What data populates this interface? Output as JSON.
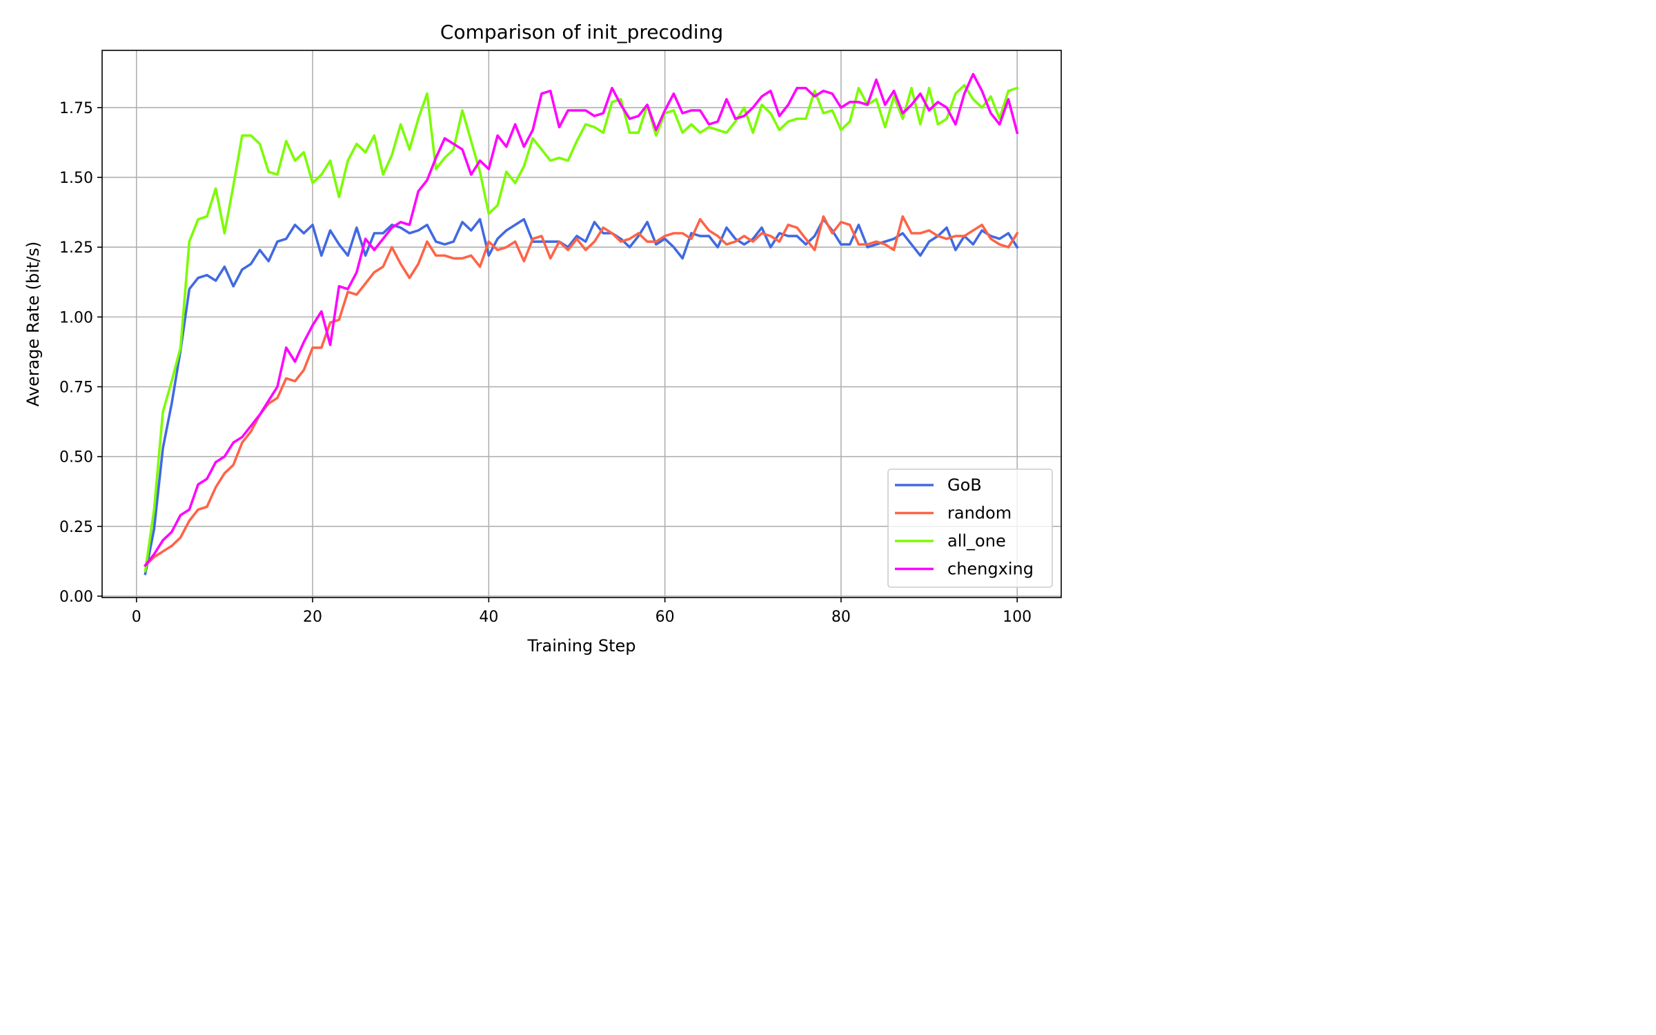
{
  "chart_data": {
    "type": "line",
    "title": "Comparison of init_precoding",
    "xlabel": "Training Step",
    "ylabel": "Average Rate (bit/s)",
    "xlim": [
      -3.9,
      105.0
    ],
    "ylim": [
      -0.005,
      1.955
    ],
    "xticks": [
      0,
      20,
      40,
      60,
      80,
      100
    ],
    "xtick_labels": [
      "0",
      "20",
      "40",
      "60",
      "80",
      "100"
    ],
    "yticks": [
      0.0,
      0.25,
      0.5,
      0.75,
      1.0,
      1.25,
      1.5,
      1.75
    ],
    "ytick_labels": [
      "0.00",
      "0.25",
      "0.50",
      "0.75",
      "1.00",
      "1.25",
      "1.50",
      "1.75"
    ],
    "grid": true,
    "legend_position": "lower right",
    "x_start": 1,
    "series": [
      {
        "name": "GoB",
        "color": "#4169e1",
        "values": [
          0.08,
          0.24,
          0.53,
          0.69,
          0.88,
          1.1,
          1.14,
          1.15,
          1.13,
          1.18,
          1.11,
          1.17,
          1.19,
          1.24,
          1.2,
          1.27,
          1.28,
          1.33,
          1.3,
          1.33,
          1.22,
          1.31,
          1.26,
          1.22,
          1.32,
          1.22,
          1.3,
          1.3,
          1.33,
          1.32,
          1.3,
          1.31,
          1.33,
          1.27,
          1.26,
          1.27,
          1.34,
          1.31,
          1.35,
          1.22,
          1.28,
          1.31,
          1.33,
          1.35,
          1.27,
          1.27,
          1.27,
          1.27,
          1.25,
          1.29,
          1.27,
          1.34,
          1.3,
          1.3,
          1.28,
          1.25,
          1.29,
          1.34,
          1.26,
          1.28,
          1.25,
          1.21,
          1.3,
          1.29,
          1.29,
          1.25,
          1.32,
          1.28,
          1.26,
          1.28,
          1.32,
          1.25,
          1.3,
          1.29,
          1.29,
          1.26,
          1.29,
          1.35,
          1.31,
          1.26,
          1.26,
          1.33,
          1.25,
          1.26,
          1.27,
          1.28,
          1.3,
          1.26,
          1.22,
          1.27,
          1.29,
          1.32,
          1.24,
          1.29,
          1.26,
          1.31,
          1.29,
          1.28,
          1.3,
          1.25
        ]
      },
      {
        "name": "random",
        "color": "#ff6347",
        "values": [
          0.11,
          0.14,
          0.16,
          0.18,
          0.21,
          0.27,
          0.31,
          0.32,
          0.39,
          0.44,
          0.47,
          0.55,
          0.59,
          0.65,
          0.69,
          0.71,
          0.78,
          0.77,
          0.81,
          0.89,
          0.89,
          0.98,
          0.99,
          1.09,
          1.08,
          1.12,
          1.16,
          1.18,
          1.25,
          1.19,
          1.14,
          1.19,
          1.27,
          1.22,
          1.22,
          1.21,
          1.21,
          1.22,
          1.18,
          1.27,
          1.24,
          1.25,
          1.27,
          1.2,
          1.28,
          1.29,
          1.21,
          1.27,
          1.24,
          1.28,
          1.24,
          1.27,
          1.32,
          1.3,
          1.27,
          1.28,
          1.3,
          1.27,
          1.27,
          1.29,
          1.3,
          1.3,
          1.28,
          1.35,
          1.31,
          1.29,
          1.26,
          1.27,
          1.29,
          1.27,
          1.3,
          1.29,
          1.27,
          1.33,
          1.32,
          1.28,
          1.24,
          1.36,
          1.3,
          1.34,
          1.33,
          1.26,
          1.26,
          1.27,
          1.26,
          1.24,
          1.36,
          1.3,
          1.3,
          1.31,
          1.29,
          1.28,
          1.29,
          1.29,
          1.31,
          1.33,
          1.28,
          1.26,
          1.25,
          1.3
        ]
      },
      {
        "name": "all_one",
        "color": "#7cfc00",
        "values": [
          0.09,
          0.31,
          0.66,
          0.77,
          0.89,
          1.27,
          1.35,
          1.36,
          1.46,
          1.3,
          1.47,
          1.65,
          1.65,
          1.62,
          1.52,
          1.51,
          1.63,
          1.56,
          1.59,
          1.48,
          1.51,
          1.56,
          1.43,
          1.56,
          1.62,
          1.59,
          1.65,
          1.51,
          1.58,
          1.69,
          1.6,
          1.71,
          1.8,
          1.53,
          1.57,
          1.6,
          1.74,
          1.63,
          1.52,
          1.37,
          1.4,
          1.52,
          1.48,
          1.54,
          1.64,
          1.6,
          1.56,
          1.57,
          1.56,
          1.63,
          1.69,
          1.68,
          1.66,
          1.77,
          1.78,
          1.66,
          1.66,
          1.76,
          1.65,
          1.73,
          1.74,
          1.66,
          1.69,
          1.66,
          1.68,
          1.67,
          1.66,
          1.7,
          1.75,
          1.66,
          1.76,
          1.73,
          1.67,
          1.7,
          1.71,
          1.71,
          1.81,
          1.73,
          1.74,
          1.67,
          1.7,
          1.82,
          1.76,
          1.78,
          1.68,
          1.79,
          1.71,
          1.82,
          1.69,
          1.82,
          1.69,
          1.71,
          1.8,
          1.83,
          1.78,
          1.75,
          1.79,
          1.71,
          1.81,
          1.82
        ]
      },
      {
        "name": "chengxing",
        "color": "#ff00ff",
        "values": [
          0.11,
          0.15,
          0.2,
          0.23,
          0.29,
          0.31,
          0.4,
          0.42,
          0.48,
          0.5,
          0.55,
          0.57,
          0.61,
          0.65,
          0.7,
          0.75,
          0.89,
          0.84,
          0.91,
          0.97,
          1.02,
          0.9,
          1.11,
          1.1,
          1.16,
          1.28,
          1.24,
          1.28,
          1.32,
          1.34,
          1.33,
          1.45,
          1.49,
          1.57,
          1.64,
          1.62,
          1.6,
          1.51,
          1.56,
          1.53,
          1.65,
          1.61,
          1.69,
          1.61,
          1.67,
          1.8,
          1.81,
          1.68,
          1.74,
          1.74,
          1.74,
          1.72,
          1.73,
          1.82,
          1.76,
          1.71,
          1.72,
          1.76,
          1.67,
          1.74,
          1.8,
          1.73,
          1.74,
          1.74,
          1.69,
          1.7,
          1.78,
          1.71,
          1.72,
          1.75,
          1.79,
          1.81,
          1.72,
          1.76,
          1.82,
          1.82,
          1.79,
          1.81,
          1.8,
          1.75,
          1.77,
          1.77,
          1.76,
          1.85,
          1.76,
          1.81,
          1.73,
          1.76,
          1.8,
          1.74,
          1.77,
          1.75,
          1.69,
          1.8,
          1.87,
          1.81,
          1.73,
          1.69,
          1.78,
          1.66
        ]
      }
    ]
  }
}
